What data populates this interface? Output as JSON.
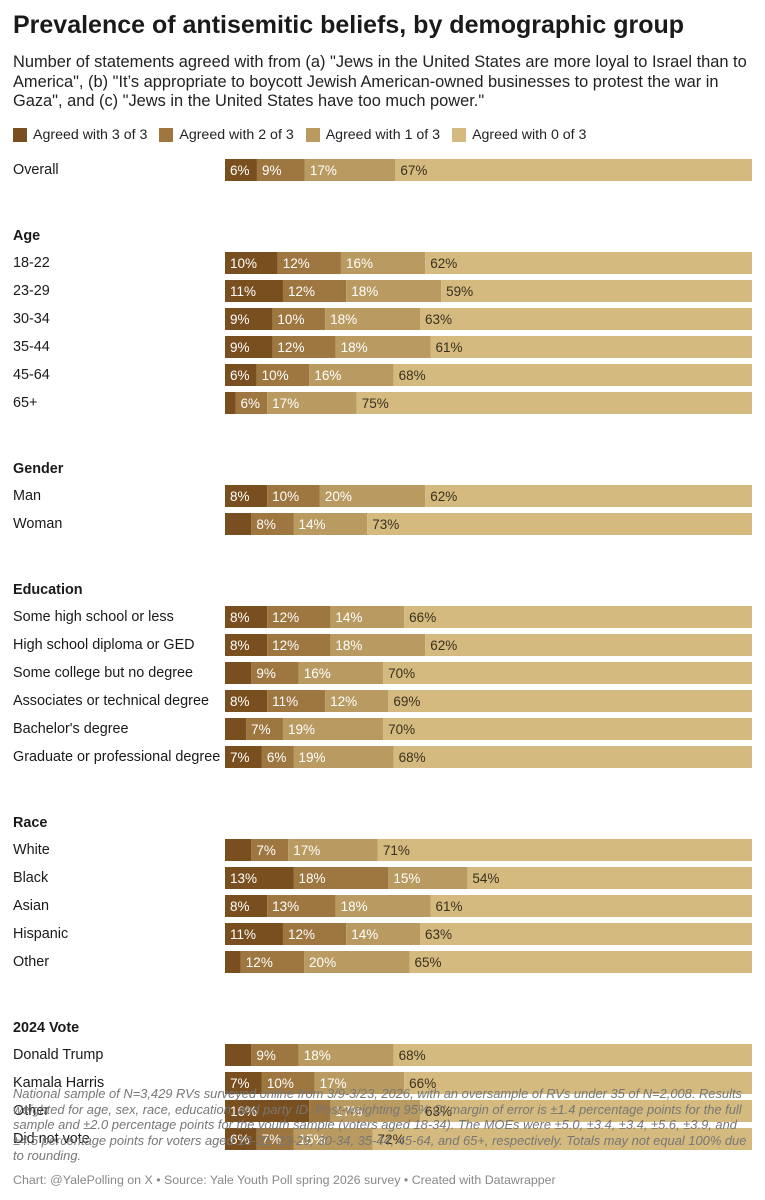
{
  "title": "Prevalence of antisemitic beliefs, by demographic group",
  "subtitle": "Number of statements agreed with from (a) \"Jews in the United States are more loyal to Israel than to America\", (b) \"It’s appropriate to boycott Jewish American-owned businesses to protest the war in Gaza\", and (c) \"Jews in the United States have too much power.\"",
  "notes": "National sample of N=3,429 RVs surveyed online from 3/9-3/23, 2026, with an oversample of RVs under 35 of N=2,008. Results weighted for age, sex, race, education, and party ID. Post-weighting 95% CI margin of error is ±1.4 percentage points for the full sample and ±2.0 percentage points for the youth sample (voters aged 18-34). The MOEs were ±5.0, ±3.4, ±3.4, ±5.6, ±3.9, and ±4.5 percentage points for voters aged 18-22, 23-29, 30-34, 35-44, 45-64, and 65+, respectively. Totals may not equal 100% due to rounding.",
  "credit": "Chart: @YalePolling on X • Source: Yale Youth Poll spring 2026 survey • Created with Datawrapper",
  "colors": {
    "agreed_3": "#7a4f1f",
    "agreed_2": "#9e7640",
    "agreed_1": "#b99b62",
    "agreed_0": "#d4ba7e"
  },
  "chart_data": {
    "type": "bar",
    "orientation": "horizontal",
    "stacked": true,
    "xlim": [
      0,
      100
    ],
    "legend_position": "top",
    "series": [
      {
        "name": "Agreed with 3 of 3",
        "color": "#7a4f1f"
      },
      {
        "name": "Agreed with 2 of 3",
        "color": "#9e7640"
      },
      {
        "name": "Agreed with 1 of 3",
        "color": "#b99b62"
      },
      {
        "name": "Agreed with 0 of 3",
        "color": "#d4ba7e"
      }
    ],
    "groups": [
      {
        "name": "",
        "rows": [
          {
            "label": "Overall",
            "values": [
              6,
              9,
              17,
              67
            ],
            "labels": [
              "6%",
              "9%",
              "17%",
              "67%"
            ]
          }
        ]
      },
      {
        "name": "Age",
        "rows": [
          {
            "label": "18-22",
            "values": [
              10,
              12,
              16,
              62
            ],
            "labels": [
              "10%",
              "12%",
              "16%",
              "62%"
            ]
          },
          {
            "label": "23-29",
            "values": [
              11,
              12,
              18,
              59
            ],
            "labels": [
              "11%",
              "12%",
              "18%",
              "59%"
            ]
          },
          {
            "label": "30-34",
            "values": [
              9,
              10,
              18,
              63
            ],
            "labels": [
              "9%",
              "10%",
              "18%",
              "63%"
            ]
          },
          {
            "label": "35-44",
            "values": [
              9,
              12,
              18,
              61
            ],
            "labels": [
              "9%",
              "12%",
              "18%",
              "61%"
            ]
          },
          {
            "label": "45-64",
            "values": [
              6,
              10,
              16,
              68
            ],
            "labels": [
              "6%",
              "10%",
              "16%",
              "68%"
            ]
          },
          {
            "label": "65+",
            "values": [
              2,
              6,
              17,
              75
            ],
            "labels": [
              "",
              "6%",
              "17%",
              "75%"
            ]
          }
        ]
      },
      {
        "name": "Gender",
        "rows": [
          {
            "label": "Man",
            "values": [
              8,
              10,
              20,
              62
            ],
            "labels": [
              "8%",
              "10%",
              "20%",
              "62%"
            ]
          },
          {
            "label": "Woman",
            "values": [
              5,
              8,
              14,
              73
            ],
            "labels": [
              "",
              "8%",
              "14%",
              "73%"
            ]
          }
        ]
      },
      {
        "name": "Education",
        "rows": [
          {
            "label": "Some high school or less",
            "values": [
              8,
              12,
              14,
              66
            ],
            "labels": [
              "8%",
              "12%",
              "14%",
              "66%"
            ]
          },
          {
            "label": "High school diploma or GED",
            "values": [
              8,
              12,
              18,
              62
            ],
            "labels": [
              "8%",
              "12%",
              "18%",
              "62%"
            ]
          },
          {
            "label": "Some college but no degree",
            "values": [
              5,
              9,
              16,
              70
            ],
            "labels": [
              "",
              "9%",
              "16%",
              "70%"
            ]
          },
          {
            "label": "Associates or technical degree",
            "values": [
              8,
              11,
              12,
              69
            ],
            "labels": [
              "8%",
              "11%",
              "12%",
              "69%"
            ]
          },
          {
            "label": "Bachelor's degree",
            "values": [
              4,
              7,
              19,
              70
            ],
            "labels": [
              "",
              "7%",
              "19%",
              "70%"
            ]
          },
          {
            "label": "Graduate or professional degree",
            "values": [
              7,
              6,
              19,
              68
            ],
            "labels": [
              "7%",
              "6%",
              "19%",
              "68%"
            ]
          }
        ]
      },
      {
        "name": "Race",
        "rows": [
          {
            "label": "White",
            "values": [
              5,
              7,
              17,
              71
            ],
            "labels": [
              "",
              "7%",
              "17%",
              "71%"
            ]
          },
          {
            "label": "Black",
            "values": [
              13,
              18,
              15,
              54
            ],
            "labels": [
              "13%",
              "18%",
              "15%",
              "54%"
            ]
          },
          {
            "label": "Asian",
            "values": [
              8,
              13,
              18,
              61
            ],
            "labels": [
              "8%",
              "13%",
              "18%",
              "61%"
            ]
          },
          {
            "label": "Hispanic",
            "values": [
              11,
              12,
              14,
              63
            ],
            "labels": [
              "11%",
              "12%",
              "14%",
              "63%"
            ]
          },
          {
            "label": "Other",
            "values": [
              3,
              12,
              20,
              65
            ],
            "labels": [
              "",
              "12%",
              "20%",
              "65%"
            ]
          }
        ]
      },
      {
        "name": "2024 Vote",
        "rows": [
          {
            "label": "Donald Trump",
            "values": [
              5,
              9,
              18,
              68
            ],
            "labels": [
              "",
              "9%",
              "18%",
              "68%"
            ]
          },
          {
            "label": "Kamala Harris",
            "values": [
              7,
              10,
              17,
              66
            ],
            "labels": [
              "7%",
              "10%",
              "17%",
              "66%"
            ]
          },
          {
            "label": "Other",
            "values": [
              16,
              4,
              17,
              63
            ],
            "labels": [
              "16%",
              "",
              "17%",
              "63%"
            ]
          },
          {
            "label": "Did not vote",
            "values": [
              6,
              7,
              15,
              72
            ],
            "labels": [
              "6%",
              "7%",
              "15%",
              "72%"
            ]
          }
        ]
      }
    ]
  }
}
